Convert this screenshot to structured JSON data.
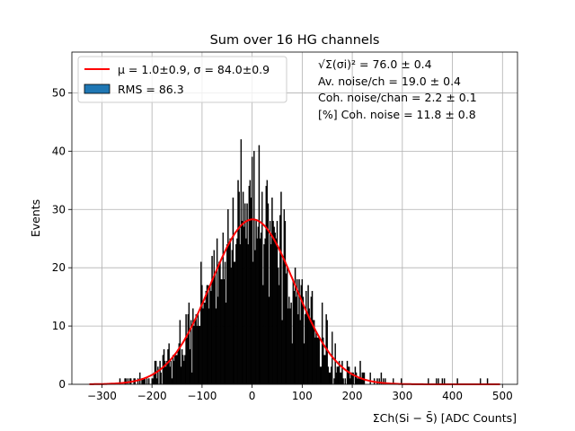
{
  "chart_data": {
    "type": "bar",
    "title": "Sum over 16 HG channels",
    "xlabel": "ΣCh(Si − S̄) [ADC Counts]",
    "ylabel": "Events",
    "xlim": [
      -360,
      530
    ],
    "ylim": [
      0,
      57
    ],
    "xticks": [
      -300,
      -200,
      -100,
      0,
      100,
      200,
      300,
      400,
      500
    ],
    "yticks": [
      0,
      10,
      20,
      30,
      40,
      50
    ],
    "grid": true,
    "histogram": {
      "name": "RMS = 86.3",
      "color": "#000000",
      "legend_color": "#1f77b4",
      "bin_width": 2,
      "x_min": -325,
      "x_max": 495
    },
    "fit": {
      "name": "μ = 1.0±0.9, σ = 84.0±0.9",
      "color": "#ff0000",
      "mu": 1.0,
      "sigma": 84.0,
      "peak": 28.3
    },
    "legend_position": "upper-left",
    "annotations": [
      "√Σ(σi)² = 76.0 ± 0.4",
      "Av. noise/ch = 19.0 ± 0.4",
      "Coh. noise/chan = 2.2 ± 0.1",
      "[%] Coh. noise = 11.8 ± 0.8"
    ]
  }
}
